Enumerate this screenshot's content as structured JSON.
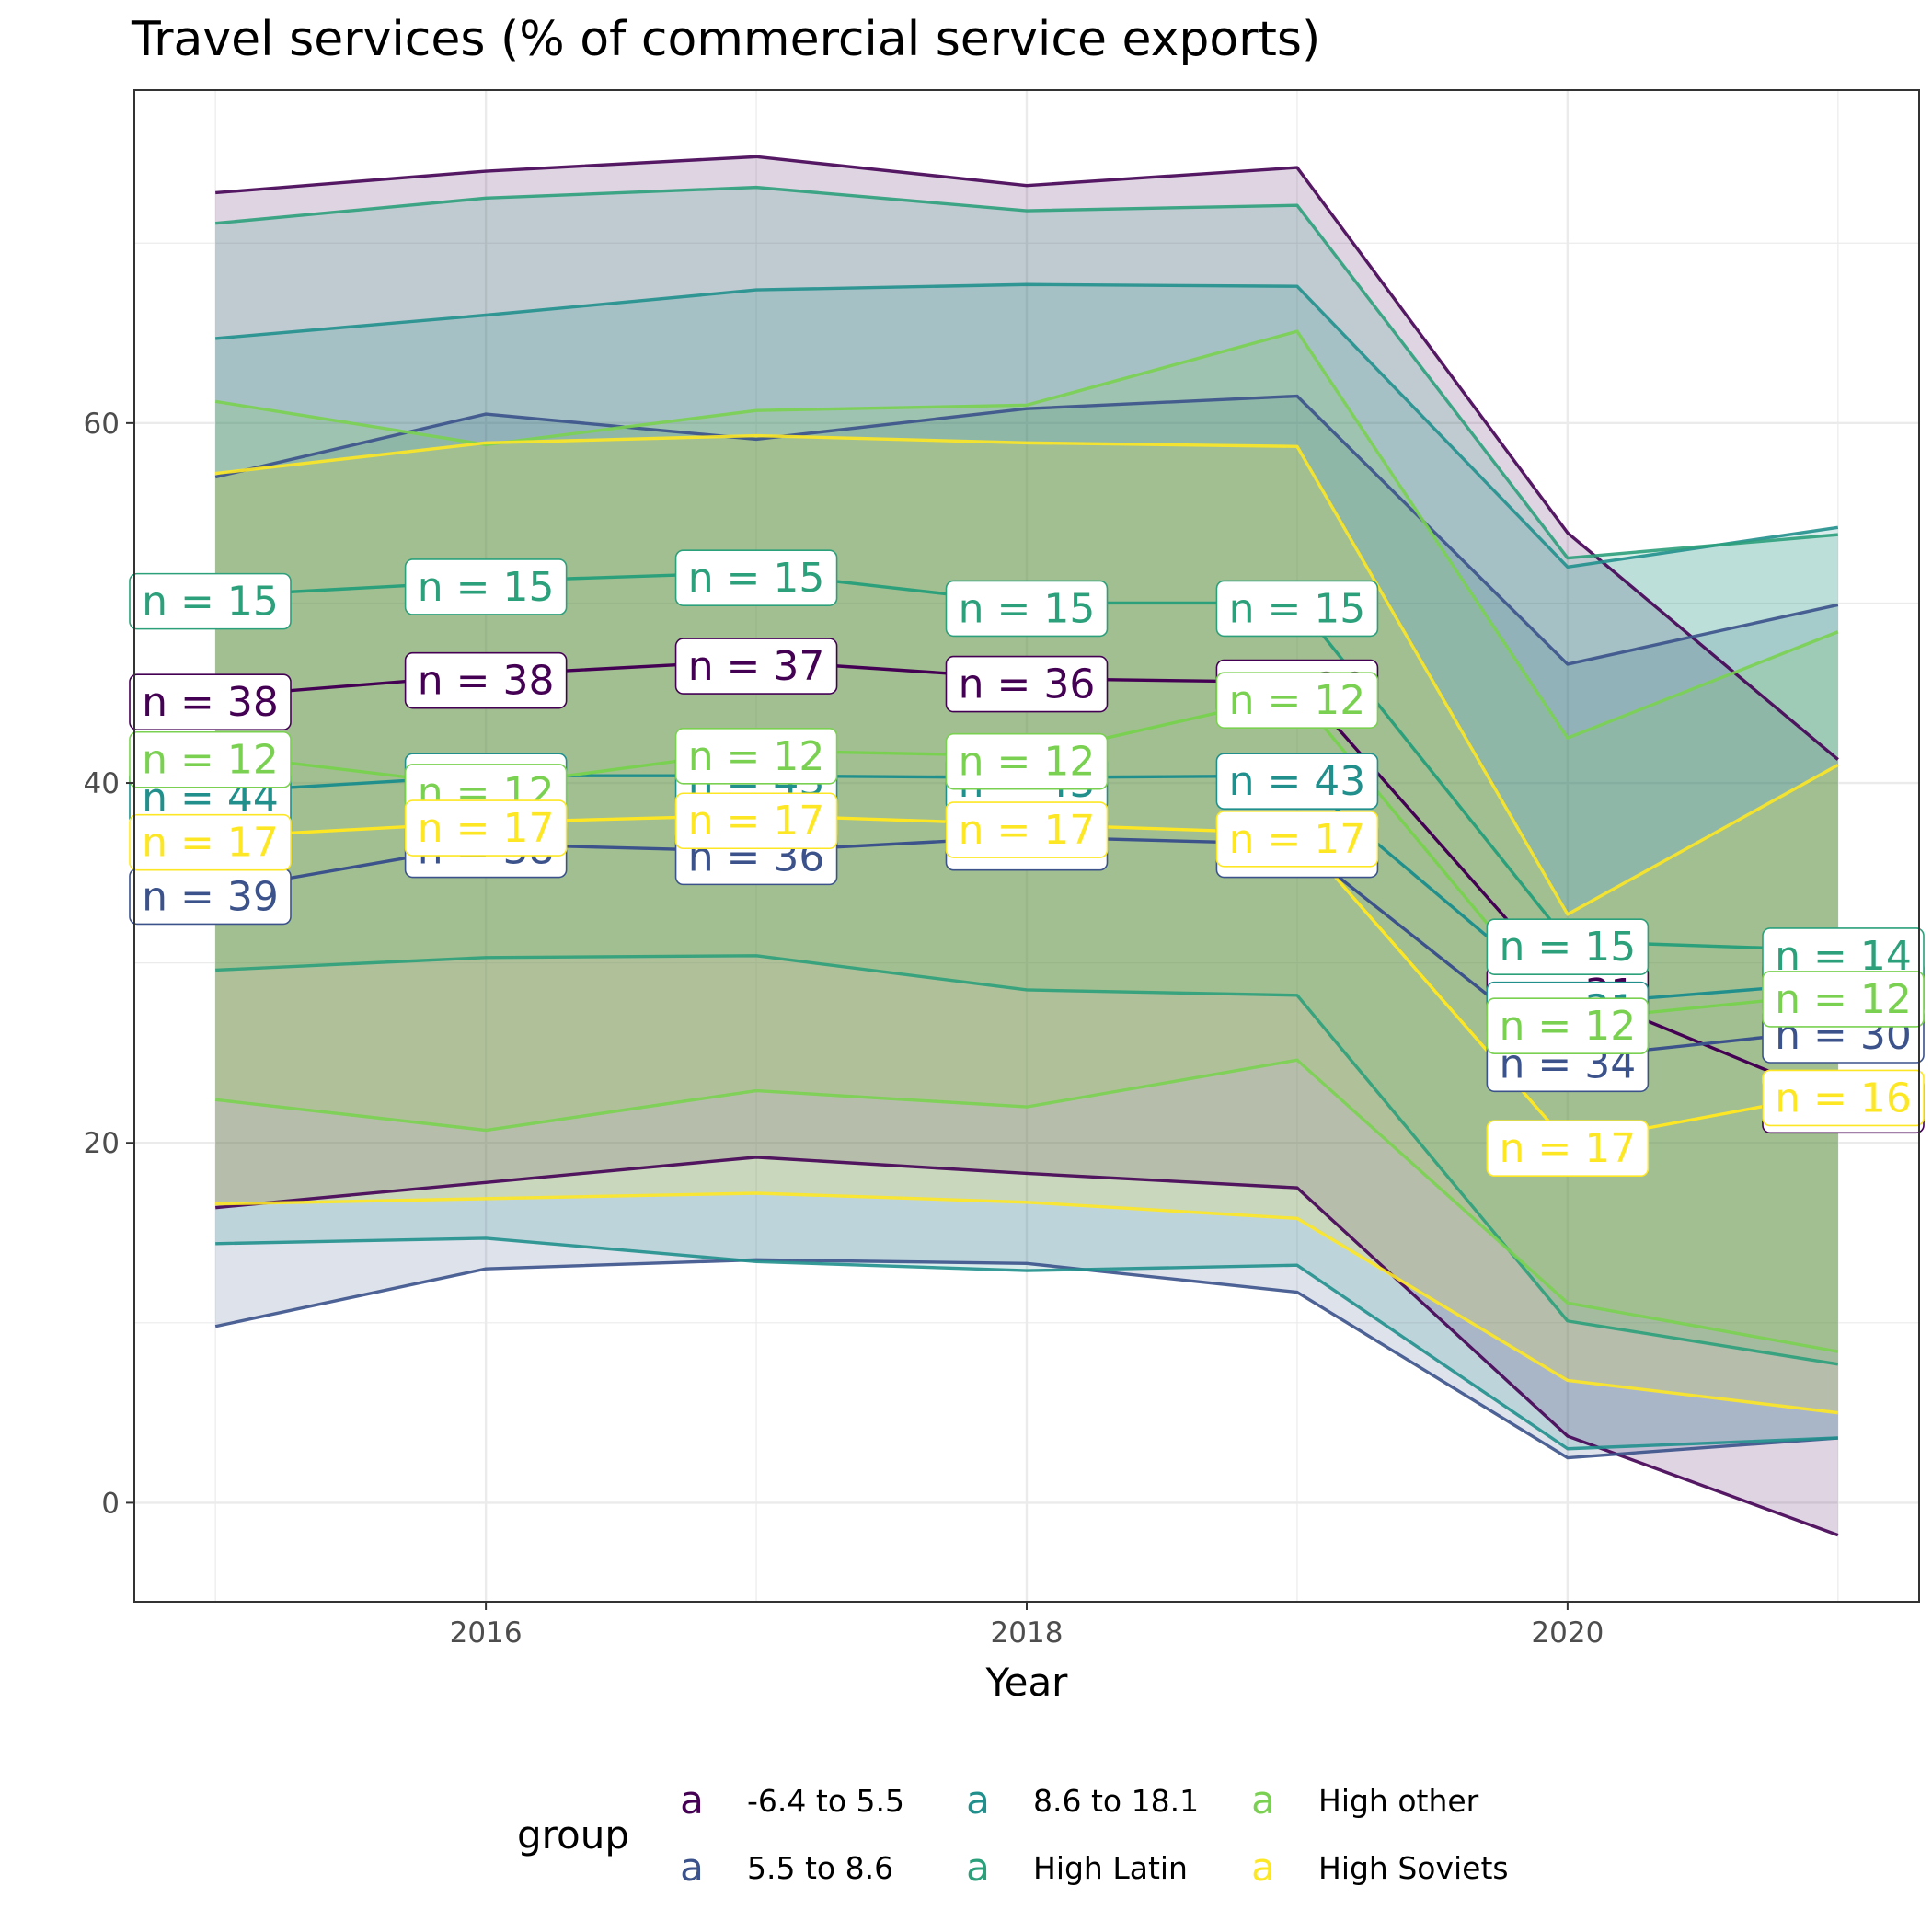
{
  "chart_data": {
    "type": "area",
    "title": "Travel services (% of commercial service exports)",
    "xlabel": "Year",
    "ylabel": "",
    "xlim": [
      2014.7,
      2021.3
    ],
    "ylim": [
      -5.5,
      78.5
    ],
    "x_ticks": [
      2016,
      2018,
      2020
    ],
    "y_ticks": [
      0,
      20,
      40,
      60
    ],
    "grid": true,
    "legend": {
      "title": "group",
      "position": "bottom",
      "key_glyph": "a"
    },
    "x": [
      2015,
      2016,
      2017,
      2018,
      2019,
      2020,
      2021
    ],
    "series": [
      {
        "name": "-6.4 to 5.5",
        "color": "#440154",
        "mean": [
          44.8,
          46.0,
          46.8,
          45.8,
          45.6,
          28.6,
          22.4
        ],
        "upper": [
          72.8,
          74.0,
          74.8,
          73.2,
          74.2,
          53.9,
          41.3
        ],
        "lower": [
          16.4,
          17.8,
          19.2,
          18.3,
          17.5,
          3.7,
          -1.8
        ],
        "n": [
          38,
          38,
          37,
          36,
          36,
          31,
          30
        ]
      },
      {
        "name": "5.5 to 8.6",
        "color": "#3b528b",
        "mean": [
          34.0,
          36.6,
          36.2,
          37.0,
          36.6,
          24.7,
          26.3
        ],
        "upper": [
          57.0,
          60.5,
          59.1,
          60.8,
          61.5,
          46.6,
          49.9
        ],
        "lower": [
          9.8,
          13.0,
          13.5,
          13.3,
          11.7,
          2.5,
          3.6
        ],
        "n": [
          39,
          38,
          36,
          36,
          36,
          34,
          30
        ]
      },
      {
        "name": "8.6 to 18.1",
        "color": "#21908d",
        "mean": [
          39.5,
          40.4,
          40.4,
          40.3,
          40.4,
          27.7,
          28.9
        ],
        "upper": [
          64.7,
          66.0,
          67.4,
          67.7,
          67.6,
          52.0,
          54.2
        ],
        "lower": [
          14.4,
          14.7,
          13.4,
          12.9,
          13.2,
          3.0,
          3.6
        ],
        "n": [
          44,
          44,
          43,
          43,
          43,
          31,
          30
        ]
      },
      {
        "name": "High Latin",
        "color": "#2ca07b",
        "mean": [
          50.4,
          51.2,
          51.7,
          50.0,
          50.0,
          31.2,
          30.7
        ],
        "upper": [
          71.1,
          72.5,
          73.1,
          71.8,
          72.1,
          52.5,
          53.8
        ],
        "lower": [
          29.6,
          30.3,
          30.4,
          28.5,
          28.2,
          10.1,
          7.7
        ],
        "n": [
          15,
          15,
          15,
          15,
          15,
          15,
          14
        ]
      },
      {
        "name": "High other",
        "color": "#7ad151",
        "mean": [
          41.6,
          39.8,
          41.8,
          41.5,
          44.9,
          26.8,
          28.3
        ],
        "upper": [
          61.2,
          58.8,
          60.7,
          61.0,
          65.1,
          42.5,
          48.4
        ],
        "lower": [
          22.4,
          20.7,
          22.9,
          22.0,
          24.6,
          11.1,
          8.4
        ],
        "n": [
          12,
          12,
          12,
          12,
          12,
          12,
          12
        ]
      },
      {
        "name": "High Soviets",
        "color": "#fde725",
        "mean": [
          37.0,
          37.8,
          38.2,
          37.7,
          37.2,
          20.0,
          22.8
        ],
        "upper": [
          57.2,
          58.9,
          59.3,
          58.9,
          58.7,
          32.7,
          41.0
        ],
        "lower": [
          16.6,
          16.9,
          17.2,
          16.7,
          15.8,
          6.8,
          5.0
        ],
        "n": [
          17,
          17,
          17,
          17,
          17,
          17,
          16
        ]
      }
    ]
  }
}
